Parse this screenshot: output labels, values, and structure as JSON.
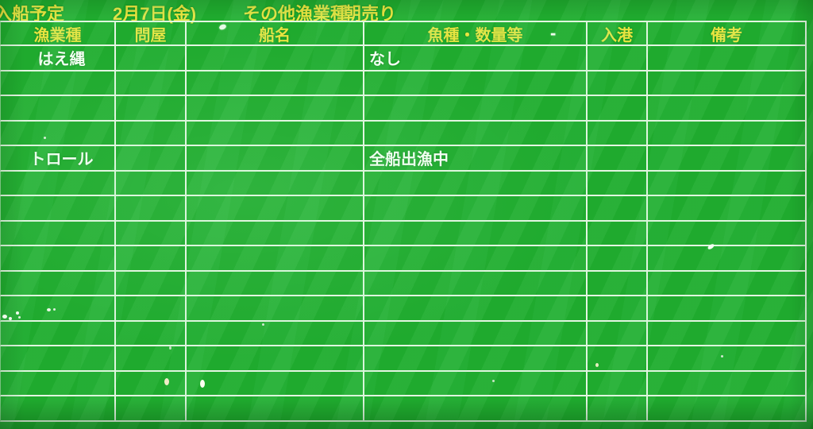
{
  "screen": {
    "title_bar": {
      "schedule_label": "入船予定",
      "date": "2月7日(金)",
      "category": "その他漁業種",
      "sale_type": "朝売り"
    },
    "table": {
      "columns": [
        "漁業種",
        "問屋",
        "船名",
        "魚種・数量等",
        "入港",
        "備考"
      ],
      "header_dash_artifact": "-",
      "rows": [
        [
          "はえ縄",
          "",
          "",
          "なし",
          "",
          ""
        ],
        [
          "",
          "",
          "",
          "",
          "",
          ""
        ],
        [
          "",
          "",
          "",
          "",
          "",
          ""
        ],
        [
          "",
          "",
          "",
          "",
          "",
          ""
        ],
        [
          "トロール",
          "",
          "",
          "全船出漁中",
          "",
          ""
        ],
        [
          "",
          "",
          "",
          "",
          "",
          ""
        ],
        [
          "",
          "",
          "",
          "",
          "",
          ""
        ],
        [
          "",
          "",
          "",
          "",
          "",
          ""
        ],
        [
          "",
          "",
          "",
          "",
          "",
          ""
        ],
        [
          "",
          "",
          "",
          "",
          "",
          ""
        ],
        [
          "",
          "",
          "",
          "",
          "",
          ""
        ],
        [
          "",
          "",
          "",
          "",
          "",
          ""
        ],
        [
          "",
          "",
          "",
          "",
          "",
          ""
        ],
        [
          "",
          "",
          "",
          "",
          "",
          ""
        ],
        [
          "",
          "",
          "",
          "",
          "",
          ""
        ]
      ]
    },
    "colors": {
      "background_green": "#1faa2e",
      "grid_line": "#e4f5e2",
      "header_text_yellow": "#e8e440",
      "body_text_white": "#f8fff6"
    }
  }
}
